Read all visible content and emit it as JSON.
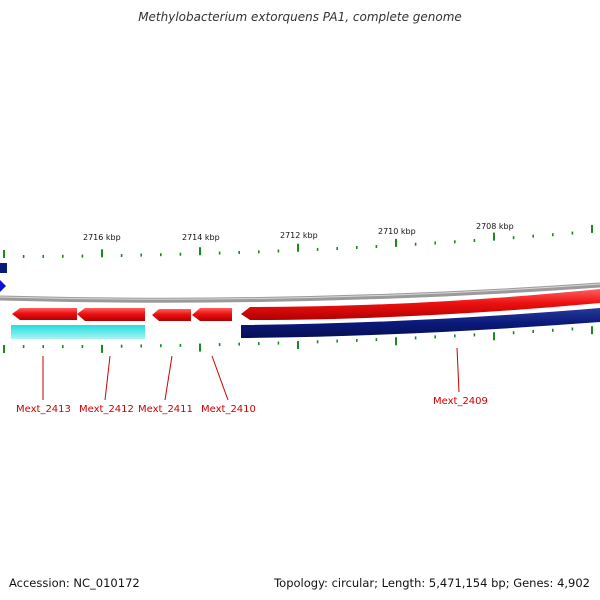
{
  "map": {
    "title": "Methylobacterium extorquens PA1, complete genome",
    "accession_text": "Accession: NC_010172",
    "summary_text": "Topology: circular; Length: 5,471,154 bp; Genes: 4,902"
  },
  "colors": {
    "forward_gene": "#ee1111",
    "reverse_gene_navy": "#0a1a7a",
    "reverse_gene_cyan": "#22dddd",
    "backbone": "#888888",
    "tick": "#1a8a1a",
    "gene_label": "#cc0000",
    "edge_marker": "#1010dd"
  },
  "ruler": {
    "labels": [
      "2716 kbp",
      "2714 kbp",
      "2712 kbp",
      "2710 kbp",
      "2708 kbp"
    ]
  },
  "genes": [
    {
      "id": "Mext_2413",
      "label": "Mext_2413",
      "strand": "forward",
      "color": "red"
    },
    {
      "id": "Mext_2412",
      "label": "Mext_2412",
      "strand": "forward",
      "color": "red"
    },
    {
      "id": "Mext_2411",
      "label": "Mext_2411",
      "strand": "forward",
      "color": "red"
    },
    {
      "id": "Mext_2410",
      "label": "Mext_2410",
      "strand": "forward",
      "color": "red"
    },
    {
      "id": "Mext_2409",
      "label": "Mext_2409",
      "strand": "forward",
      "color": "red"
    }
  ]
}
